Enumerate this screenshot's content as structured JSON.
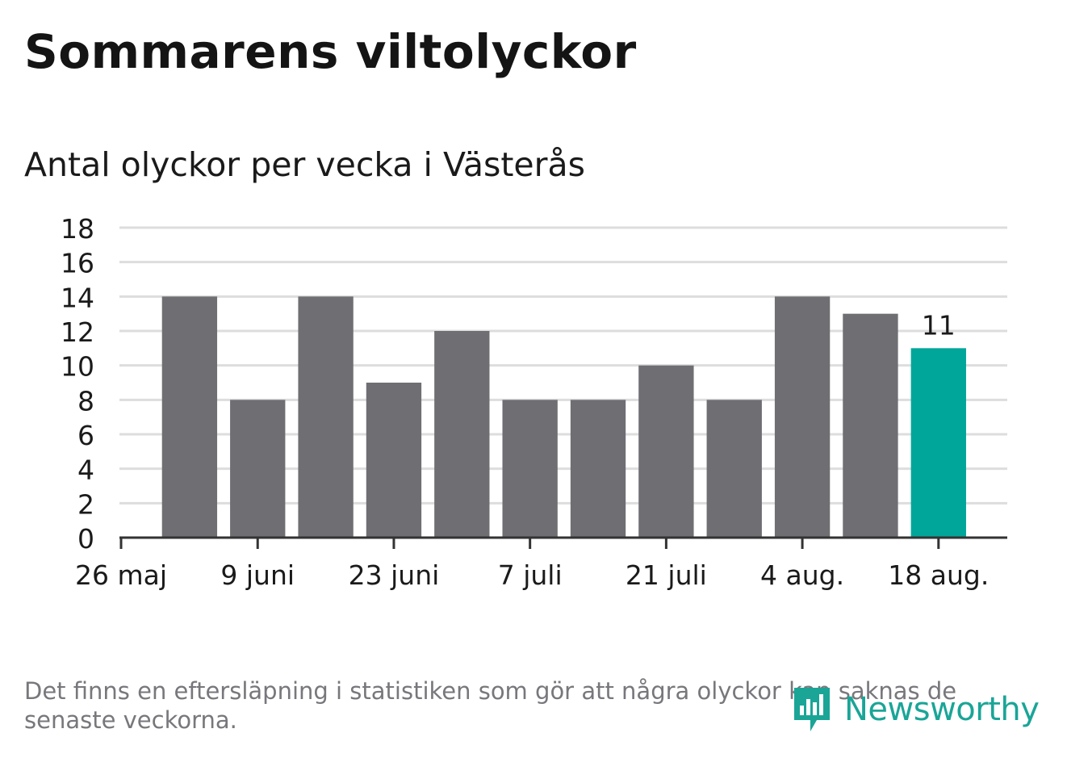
{
  "header": {
    "title": "Sommarens viltolyckor",
    "subtitle": "Antal olyckor per vecka i Västerås"
  },
  "chart_data": {
    "type": "bar",
    "title": "Sommarens viltolyckor",
    "subtitle": "Antal olyckor per vecka i Västerås",
    "xlabel": "",
    "ylabel": "",
    "weeks": [
      "2 juni",
      "9 juni",
      "16 juni",
      "23 juni",
      "30 juni",
      "7 juli",
      "14 juli",
      "21 juli",
      "28 juli",
      "4 aug.",
      "11 aug.",
      "18 aug."
    ],
    "values": [
      14,
      8,
      14,
      9,
      12,
      8,
      8,
      10,
      8,
      14,
      13,
      11
    ],
    "x_tick_labels": [
      "26 maj",
      "9 juni",
      "23 juni",
      "7 juli",
      "21 juli",
      "4 aug.",
      "18 aug."
    ],
    "y_ticks": [
      0,
      2,
      4,
      6,
      8,
      10,
      12,
      14,
      16,
      18
    ],
    "ylim": [
      0,
      18
    ],
    "grid": true,
    "highlight_index": 11,
    "highlight_label": "11",
    "colors": {
      "bar": "#6e6e73",
      "highlight": "#00a69a",
      "grid": "#dddddd",
      "axis": "#333333"
    }
  },
  "footer": {
    "note": "Det finns en eftersläpning i statistiken som gör att några olyckor kan saknas de senaste veckorna.",
    "brand": "Newsworthy",
    "brand_icon": "newsworthy-logo-icon",
    "brand_color": "#1aa597"
  }
}
